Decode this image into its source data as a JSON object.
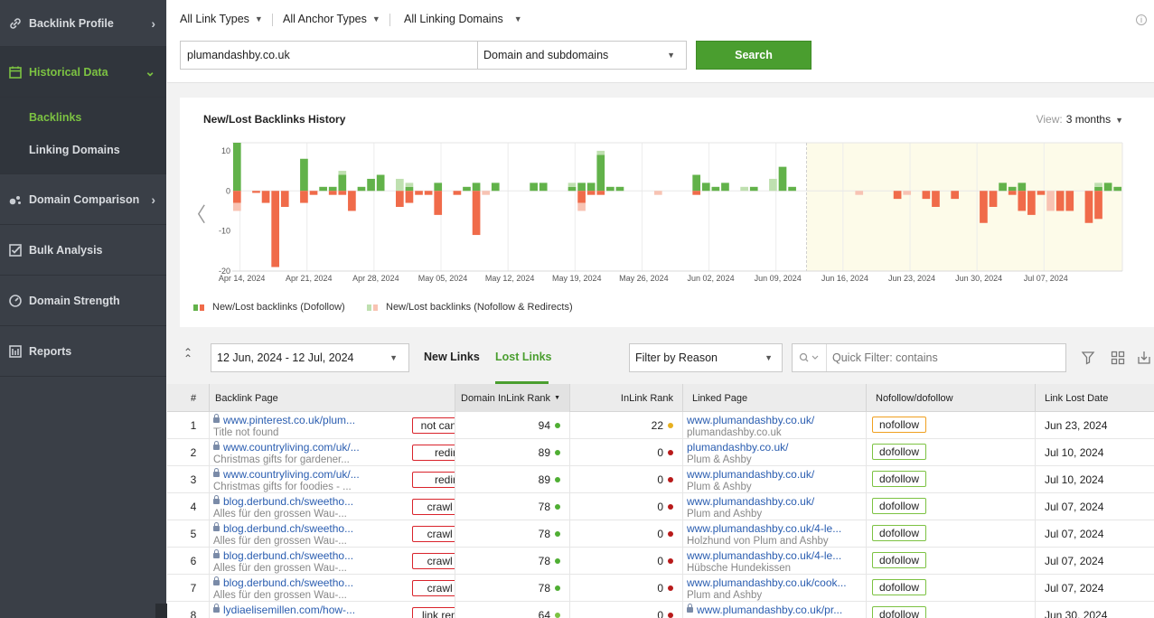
{
  "sidebar": {
    "items": [
      {
        "label": "Backlink Profile",
        "icon": "link-icon"
      },
      {
        "label": "Historical Data",
        "icon": "calendar-icon",
        "active": true,
        "subitems": [
          {
            "label": "Backlinks",
            "active": true
          },
          {
            "label": "Linking Domains"
          }
        ]
      },
      {
        "label": "Domain Comparison",
        "icon": "dots-icon"
      },
      {
        "label": "Bulk Analysis",
        "icon": "checklist-icon"
      },
      {
        "label": "Domain Strength",
        "icon": "gauge-icon"
      },
      {
        "label": "Reports",
        "icon": "report-icon"
      }
    ]
  },
  "filters": {
    "link_types": "All Link Types",
    "anchor_types": "All Anchor Types",
    "linking_domains": "All Linking Domains"
  },
  "search": {
    "value": "plumandashby.co.uk",
    "scope": "Domain and subdomains",
    "button": "Search"
  },
  "chart": {
    "title": "New/Lost Backlinks History",
    "view_label": "View:",
    "view_value": "3 months",
    "legend": [
      {
        "label": "New/Lost backlinks (Dofollow)",
        "colors": [
          "#62b24a",
          "#f06b4a"
        ]
      },
      {
        "label": "New/Lost backlinks (Nofollow & Redirects)",
        "colors": [
          "#bfe0b0",
          "#f8c3b3"
        ]
      }
    ]
  },
  "chart_data": {
    "type": "bar",
    "title": "New/Lost Backlinks History",
    "ylim": [
      -20,
      12
    ],
    "yticks": [
      10,
      0,
      -10,
      -20
    ],
    "xticks": [
      "Apr 14, 2024",
      "Apr 21, 2024",
      "Apr 28, 2024",
      "May 05, 2024",
      "May 12, 2024",
      "May 19, 2024",
      "May 26, 2024",
      "Jun 02, 2024",
      "Jun 09, 2024",
      "Jun 16, 2024",
      "Jun 23, 2024",
      "Jun 30, 2024",
      "Jul 07, 2024"
    ],
    "x_start": "Apr 13, 2024",
    "highlight_start": "Jun 12, 2024",
    "series_order": [
      "new_dofollow",
      "new_nofollow",
      "lost_dofollow",
      "lost_nofollow"
    ],
    "days": [
      [
        "Apr 13, 2024",
        12,
        0,
        -3,
        -2
      ],
      [
        "Apr 15, 2024",
        0,
        0,
        -0.5,
        0
      ],
      [
        "Apr 16, 2024",
        0,
        0,
        -3,
        0
      ],
      [
        "Apr 17, 2024",
        0,
        0,
        -19,
        0
      ],
      [
        "Apr 18, 2024",
        0,
        0,
        -4,
        0
      ],
      [
        "Apr 20, 2024",
        8,
        0,
        -3,
        0
      ],
      [
        "Apr 21, 2024",
        0,
        0,
        -1,
        0
      ],
      [
        "Apr 22, 2024",
        1,
        0,
        0,
        0
      ],
      [
        "Apr 23, 2024",
        1,
        0,
        -1,
        0
      ],
      [
        "Apr 24, 2024",
        4,
        1,
        -1,
        0
      ],
      [
        "Apr 25, 2024",
        0,
        0,
        -5,
        0
      ],
      [
        "Apr 26, 2024",
        1,
        0,
        0,
        0
      ],
      [
        "Apr 27, 2024",
        3,
        0,
        0,
        0
      ],
      [
        "Apr 28, 2024",
        4,
        0,
        0,
        0
      ],
      [
        "Apr 30, 2024",
        0,
        3,
        -4,
        0
      ],
      [
        "May 01, 2024",
        1,
        1,
        -3,
        0
      ],
      [
        "May 02, 2024",
        0,
        0,
        -1,
        0
      ],
      [
        "May 03, 2024",
        0,
        0,
        -1,
        0
      ],
      [
        "May 04, 2024",
        2,
        0,
        -6,
        0
      ],
      [
        "May 06, 2024",
        0,
        0,
        -1,
        0
      ],
      [
        "May 07, 2024",
        1,
        0,
        0,
        0
      ],
      [
        "May 08, 2024",
        2,
        0,
        -11,
        0
      ],
      [
        "May 09, 2024",
        0,
        0,
        0,
        -1
      ],
      [
        "May 10, 2024",
        2,
        0,
        0,
        0
      ],
      [
        "May 14, 2024",
        2,
        0,
        0,
        0
      ],
      [
        "May 15, 2024",
        2,
        0,
        0,
        0
      ],
      [
        "May 18, 2024",
        1,
        1,
        0,
        0
      ],
      [
        "May 19, 2024",
        2,
        0,
        -3,
        -2
      ],
      [
        "May 20, 2024",
        2,
        0,
        -1,
        0
      ],
      [
        "May 21, 2024",
        9,
        1,
        -1,
        0
      ],
      [
        "May 22, 2024",
        1,
        0,
        0,
        0
      ],
      [
        "May 23, 2024",
        1,
        0,
        0,
        0
      ],
      [
        "May 27, 2024",
        0,
        0,
        0,
        -1
      ],
      [
        "May 31, 2024",
        4,
        0,
        -1,
        0
      ],
      [
        "Jun 01, 2024",
        2,
        0,
        0,
        0
      ],
      [
        "Jun 02, 2024",
        1,
        0,
        0,
        0
      ],
      [
        "Jun 03, 2024",
        2,
        0,
        0,
        0
      ],
      [
        "Jun 05, 2024",
        0,
        1,
        0,
        0
      ],
      [
        "Jun 06, 2024",
        1,
        0,
        0,
        0
      ],
      [
        "Jun 08, 2024",
        0,
        3,
        0,
        0
      ],
      [
        "Jun 09, 2024",
        6,
        0,
        0,
        0
      ],
      [
        "Jun 10, 2024",
        1,
        0,
        0,
        0
      ],
      [
        "Jun 17, 2024",
        0,
        0,
        0,
        -1
      ],
      [
        "Jun 21, 2024",
        0,
        0,
        -2,
        0
      ],
      [
        "Jun 22, 2024",
        0,
        0,
        0,
        -1
      ],
      [
        "Jun 24, 2024",
        0,
        0,
        -2,
        0
      ],
      [
        "Jun 25, 2024",
        0,
        0,
        -4,
        0
      ],
      [
        "Jun 27, 2024",
        0,
        0,
        -2,
        0
      ],
      [
        "Jun 30, 2024",
        0,
        0,
        -8,
        0
      ],
      [
        "Jul 01, 2024",
        0,
        0,
        -4,
        0
      ],
      [
        "Jul 02, 2024",
        2,
        0,
        0,
        0
      ],
      [
        "Jul 03, 2024",
        1,
        0,
        -1,
        0
      ],
      [
        "Jul 04, 2024",
        2,
        0,
        -5,
        0
      ],
      [
        "Jul 05, 2024",
        0,
        0,
        -6,
        0
      ],
      [
        "Jul 06, 2024",
        0,
        0,
        -1,
        0
      ],
      [
        "Jul 07, 2024",
        0,
        0,
        0,
        -5
      ],
      [
        "Jul 08, 2024",
        0,
        0,
        -5,
        0
      ],
      [
        "Jul 09, 2024",
        0,
        0,
        -5,
        0
      ],
      [
        "Jul 11, 2024",
        0,
        0,
        -8,
        0
      ],
      [
        "Jul 12, 2024",
        1,
        1,
        -7,
        0
      ],
      [
        "Jul 13, 2024",
        2,
        0,
        0,
        0
      ],
      [
        "Jul 14, 2024",
        1,
        0,
        0,
        0
      ]
    ]
  },
  "toolbar": {
    "date_range": "12 Jun, 2024 - 12 Jul, 2024",
    "tab_new": "New Links",
    "tab_lost": "Lost Links",
    "reason_filter": "Filter by Reason",
    "quick_filter_placeholder": "Quick Filter: contains"
  },
  "table": {
    "headers": {
      "num": "#",
      "backlink_page": "Backlink Page",
      "domain_rank": "Domain InLink Rank",
      "inlink_rank": "InLink Rank",
      "linked_page": "Linked Page",
      "follow": "Nofollow/dofollow",
      "lost_date": "Link Lost Date"
    },
    "rows": [
      {
        "num": "1",
        "secure": true,
        "url": "www.pinterest.co.uk/plum...",
        "title": "Title not found",
        "reason": "not canonical",
        "domain_rank": "94",
        "domain_dot": "#4fae33",
        "inlink_rank": "22",
        "inlink_dot": "#e7b020",
        "linked_secure": false,
        "linked_url": "www.plumandashby.co.uk/",
        "linked_title": "plumandashby.co.uk",
        "follow": "nofollow",
        "follow_color": "#f0a020",
        "lost_date": "Jun 23, 2024"
      },
      {
        "num": "2",
        "secure": true,
        "url": "www.countryliving.com/uk/...",
        "title": "Christmas gifts for gardener...",
        "reason": "redirect",
        "domain_rank": "89",
        "domain_dot": "#4fae33",
        "inlink_rank": "0",
        "inlink_dot": "#b81a1a",
        "linked_secure": false,
        "linked_url": "plumandashby.co.uk/",
        "linked_title": "Plum & Ashby",
        "follow": "dofollow",
        "follow_color": "#7cc242",
        "lost_date": "Jul 10, 2024"
      },
      {
        "num": "3",
        "secure": true,
        "url": "www.countryliving.com/uk/...",
        "title": "Christmas gifts for foodies - ...",
        "reason": "redirect",
        "domain_rank": "89",
        "domain_dot": "#4fae33",
        "inlink_rank": "0",
        "inlink_dot": "#b81a1a",
        "linked_secure": false,
        "linked_url": "www.plumandashby.co.uk/",
        "linked_title": "Plum & Ashby",
        "follow": "dofollow",
        "follow_color": "#7cc242",
        "lost_date": "Jul 10, 2024"
      },
      {
        "num": "4",
        "secure": true,
        "url": "blog.derbund.ch/sweetho...",
        "title": "Alles für den grossen Wau-...",
        "reason": "crawl error",
        "domain_rank": "78",
        "domain_dot": "#4fae33",
        "inlink_rank": "0",
        "inlink_dot": "#b81a1a",
        "linked_secure": false,
        "linked_url": "www.plumandashby.co.uk/",
        "linked_title": "Plum and Ashby",
        "follow": "dofollow",
        "follow_color": "#7cc242",
        "lost_date": "Jul 07, 2024"
      },
      {
        "num": "5",
        "secure": true,
        "url": "blog.derbund.ch/sweetho...",
        "title": "Alles für den grossen Wau-...",
        "reason": "crawl error",
        "domain_rank": "78",
        "domain_dot": "#4fae33",
        "inlink_rank": "0",
        "inlink_dot": "#b81a1a",
        "linked_secure": false,
        "linked_url": "www.plumandashby.co.uk/4-le...",
        "linked_title": "Holzhund von Plum and Ashby",
        "follow": "dofollow",
        "follow_color": "#7cc242",
        "lost_date": "Jul 07, 2024"
      },
      {
        "num": "6",
        "secure": true,
        "url": "blog.derbund.ch/sweetho...",
        "title": "Alles für den grossen Wau-...",
        "reason": "crawl error",
        "domain_rank": "78",
        "domain_dot": "#4fae33",
        "inlink_rank": "0",
        "inlink_dot": "#b81a1a",
        "linked_secure": false,
        "linked_url": "www.plumandashby.co.uk/4-le...",
        "linked_title": "Hübsche Hundekissen",
        "follow": "dofollow",
        "follow_color": "#7cc242",
        "lost_date": "Jul 07, 2024"
      },
      {
        "num": "7",
        "secure": true,
        "url": "blog.derbund.ch/sweetho...",
        "title": "Alles für den grossen Wau-...",
        "reason": "crawl error",
        "domain_rank": "78",
        "domain_dot": "#4fae33",
        "inlink_rank": "0",
        "inlink_dot": "#b81a1a",
        "linked_secure": false,
        "linked_url": "www.plumandashby.co.uk/cook...",
        "linked_title": "Plum and Ashby",
        "follow": "dofollow",
        "follow_color": "#7cc242",
        "lost_date": "Jul 07, 2024"
      },
      {
        "num": "8",
        "secure": true,
        "url": "lydiaelisemillen.com/how-...",
        "title": "",
        "reason": "link removed",
        "domain_rank": "64",
        "domain_dot": "#7cc242",
        "inlink_rank": "0",
        "inlink_dot": "#b81a1a",
        "linked_secure": true,
        "linked_url": "www.plumandashby.co.uk/pr...",
        "linked_title": "",
        "follow": "dofollow",
        "follow_color": "#7cc242",
        "lost_date": "Jun 30, 2024"
      }
    ]
  }
}
